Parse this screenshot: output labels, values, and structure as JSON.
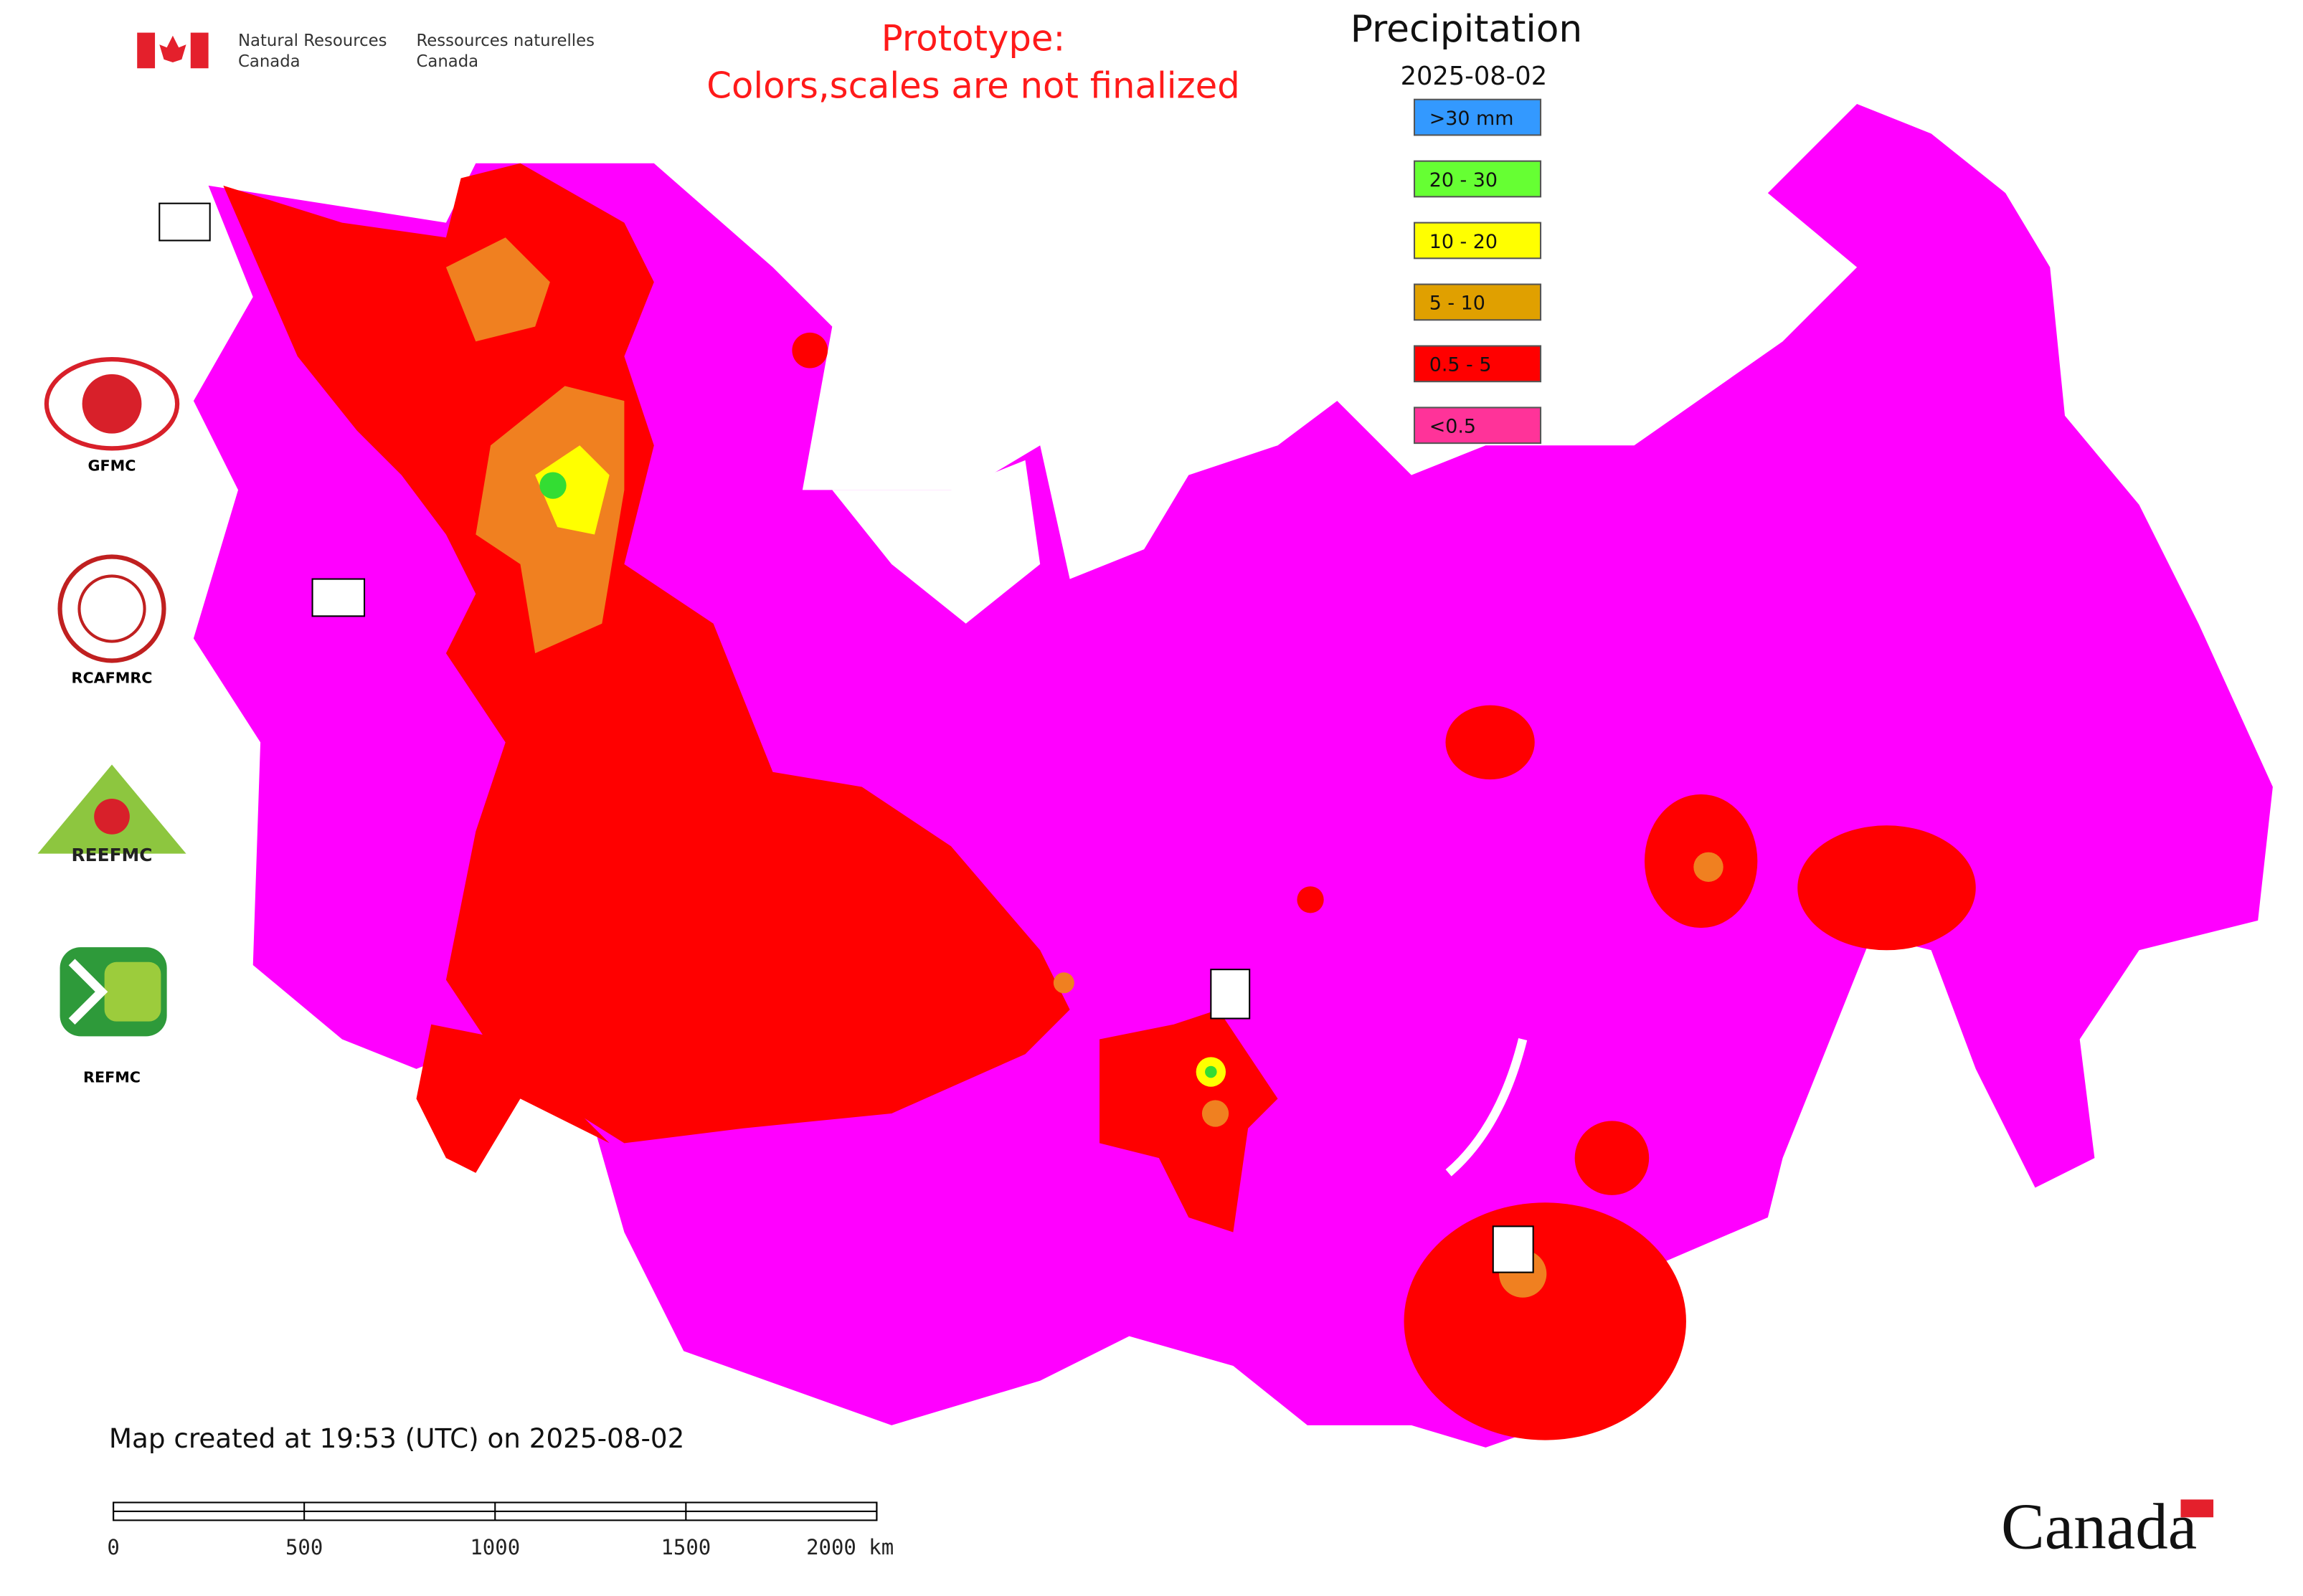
{
  "header": {
    "dept_en_1": "Natural Resources",
    "dept_en_2": "Canada",
    "dept_fr_1": "Ressources naturelles",
    "dept_fr_2": "Canada"
  },
  "notice": {
    "line1": "Prototype:",
    "line2": "Colors,scales are not finalized"
  },
  "legend": {
    "title": "Precipitation",
    "date": "2025-08-02",
    "items": [
      {
        "label": ">30 mm",
        "color": "#3399ff"
      },
      {
        "label": "20 - 30",
        "color": "#66ff33"
      },
      {
        "label": "10 - 20",
        "color": "#ffff00"
      },
      {
        "label": "5 - 10",
        "color": "#e0a000"
      },
      {
        "label": "0.5 - 5",
        "color": "#ff0000"
      },
      {
        "label": "<0.5",
        "color": "#ff3399"
      }
    ]
  },
  "logos": {
    "gfmc": "GFMC",
    "rcafmrc": "RCAFMRC",
    "reefmc": "REEFMC",
    "refmc": "REFMC"
  },
  "footer": {
    "created": "Map created at 19:53 (UTC) on 2025-08-02",
    "wordmark": "Canada"
  },
  "scale_bar": {
    "labels": [
      "0",
      "500",
      "1000",
      "1500",
      "2000 km"
    ]
  }
}
